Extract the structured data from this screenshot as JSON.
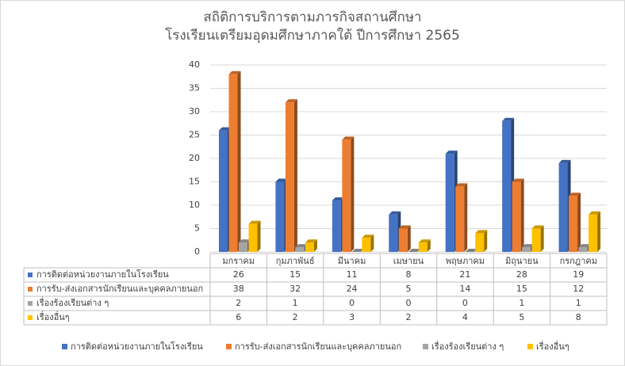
{
  "chart_data": {
    "type": "bar3d",
    "title": [
      "สถิติการบริการตามภารกิจสถานศึกษา",
      "โรงเรียนเตรียมอุดมศึกษาภาคใต้ ปีการศึกษา 2565"
    ],
    "categories": [
      "มกราคม",
      "กุมภาพันธ์",
      "มีนาคม",
      "เมษายน",
      "พฤษภาคม",
      "มิถุนายน",
      "กรกฎาคม"
    ],
    "series": [
      {
        "name": "การติดต่อหน่วยงานภายในโรงเรียน",
        "color": "#4472c4",
        "values": [
          26,
          15,
          11,
          8,
          21,
          28,
          19
        ]
      },
      {
        "name": "การรับ-ส่งเอกสารนักเรียนและบุคคลภายนอก",
        "color": "#ed7d31",
        "values": [
          38,
          32,
          24,
          5,
          14,
          15,
          12
        ]
      },
      {
        "name": "เรื่องร้องเรียนต่าง ๆ",
        "color": "#a5a5a5",
        "values": [
          2,
          1,
          0,
          0,
          0,
          1,
          1
        ]
      },
      {
        "name": "เรื่องอื่นๆ",
        "color": "#ffc000",
        "values": [
          6,
          2,
          3,
          2,
          4,
          5,
          8
        ]
      }
    ],
    "ylim": [
      0,
      40
    ],
    "yticks": [
      0,
      5,
      10,
      15,
      20,
      25,
      30,
      35,
      40
    ],
    "grid": true,
    "data_table": true,
    "legend": "bottom"
  }
}
